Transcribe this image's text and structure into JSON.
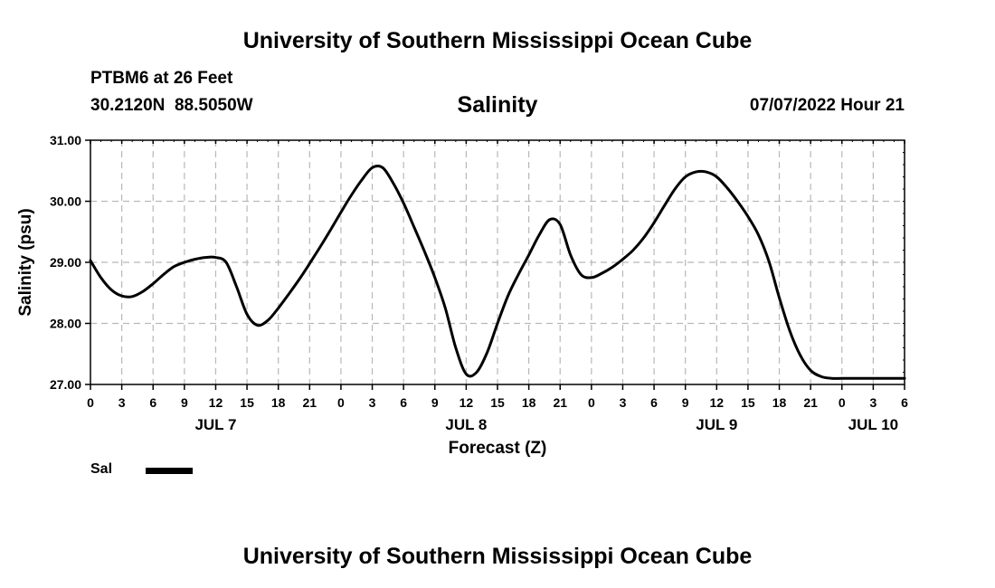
{
  "header": {
    "title": "University of Southern Mississippi Ocean Cube",
    "station": "PTBM6 at 26 Feet",
    "coords": "30.2120N  88.5050W",
    "variable": "Salinity",
    "datetime": "07/07/2022 Hour 21"
  },
  "footer": {
    "title": "University of Southern Mississippi Ocean Cube"
  },
  "legend": {
    "label": "Sal",
    "color": "#000000"
  },
  "chart_data": {
    "type": "line",
    "xlabel": "Forecast (Z)",
    "ylabel": "Salinity (psu)",
    "ylim": [
      27.0,
      31.0
    ],
    "yticks": [
      "31.00",
      "30.00",
      "29.00",
      "28.00",
      "27.00"
    ],
    "xlim_hours": [
      0,
      78
    ],
    "x_tick_labels": [
      "0",
      "3",
      "6",
      "9",
      "12",
      "15",
      "18",
      "21",
      "0",
      "3",
      "6",
      "9",
      "12",
      "15",
      "18",
      "21",
      "0",
      "3",
      "6",
      "9",
      "12",
      "15",
      "18",
      "21",
      "0",
      "3",
      "6"
    ],
    "day_labels": [
      {
        "text": "JUL 7",
        "hour": 12
      },
      {
        "text": "JUL 8",
        "hour": 36
      },
      {
        "text": "JUL 9",
        "hour": 60
      },
      {
        "text": "JUL 10",
        "hour": 75
      }
    ],
    "grid": true,
    "legend_position": "bottom-left",
    "series": [
      {
        "name": "Sal",
        "x": [
          0,
          1,
          2,
          3,
          4,
          5,
          6,
          7,
          8,
          9,
          10,
          11,
          12,
          13,
          14,
          15,
          16,
          17,
          18,
          19,
          20,
          21,
          22,
          23,
          24,
          25,
          26,
          27,
          28,
          29,
          30,
          31,
          32,
          33,
          34,
          35,
          36,
          37,
          38,
          39,
          40,
          41,
          42,
          43,
          44,
          45,
          46,
          47,
          48,
          49,
          50,
          51,
          52,
          53,
          54,
          55,
          56,
          57,
          58,
          59,
          60,
          61,
          62,
          63,
          64,
          65,
          66,
          67,
          68,
          69,
          70,
          71,
          72,
          73,
          74,
          75,
          76,
          77,
          78
        ],
        "values": [
          29.03,
          28.75,
          28.55,
          28.45,
          28.44,
          28.52,
          28.65,
          28.8,
          28.93,
          29.0,
          29.05,
          29.08,
          29.08,
          29.0,
          28.6,
          28.15,
          27.97,
          28.05,
          28.25,
          28.48,
          28.72,
          28.98,
          29.25,
          29.53,
          29.82,
          30.1,
          30.35,
          30.55,
          30.55,
          30.3,
          29.97,
          29.58,
          29.18,
          28.75,
          28.25,
          27.6,
          27.17,
          27.2,
          27.52,
          28.0,
          28.45,
          28.8,
          29.12,
          29.45,
          29.7,
          29.62,
          29.12,
          28.8,
          28.75,
          28.82,
          28.92,
          29.05,
          29.2,
          29.4,
          29.65,
          29.93,
          30.2,
          30.4,
          30.48,
          30.48,
          30.4,
          30.22,
          30.0,
          29.75,
          29.45,
          29.02,
          28.42,
          27.88,
          27.48,
          27.23,
          27.13,
          27.1,
          27.1,
          27.1,
          27.1,
          27.1,
          27.1,
          27.1,
          27.1
        ]
      }
    ]
  }
}
